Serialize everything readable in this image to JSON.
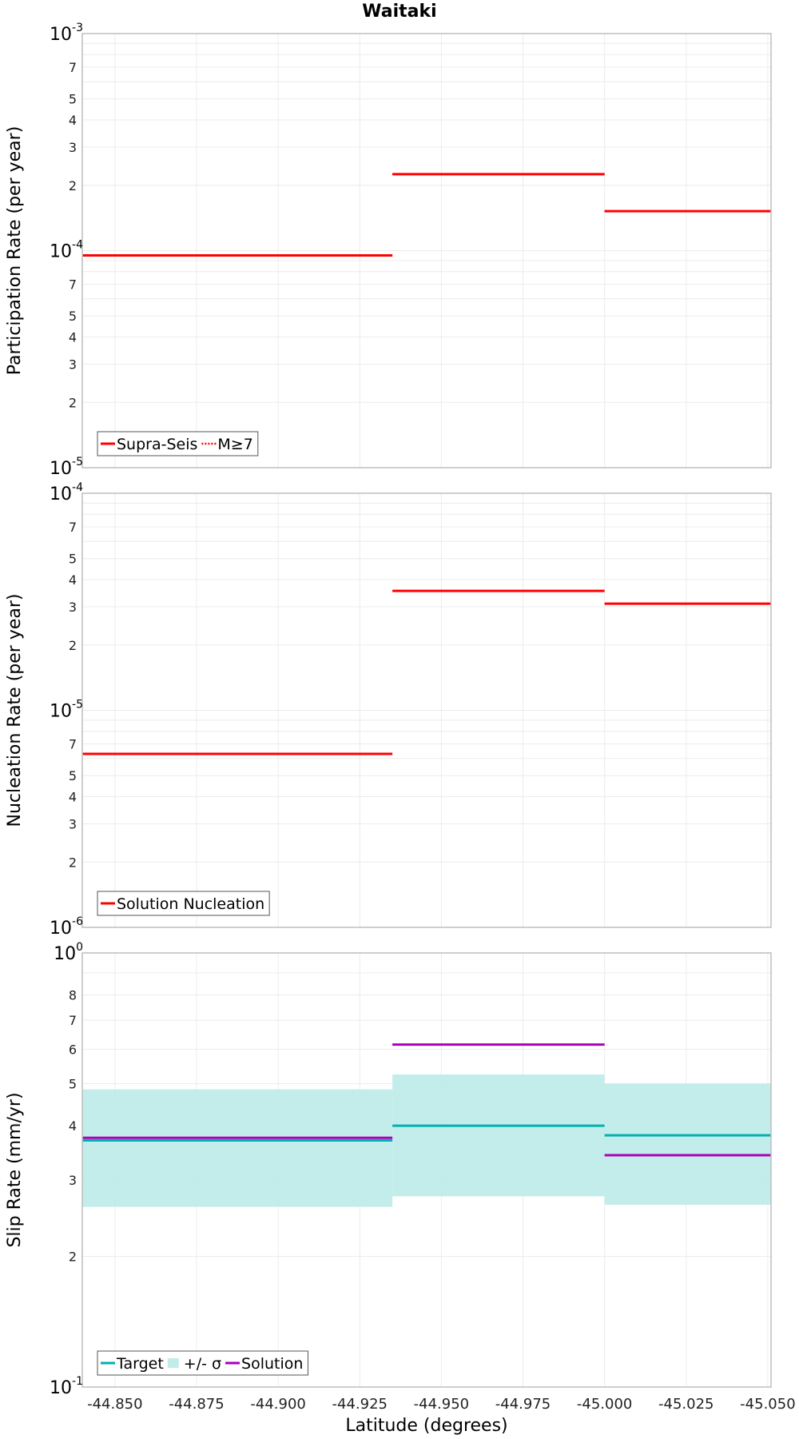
{
  "title": "Waitaki",
  "colors": {
    "red": "#ff0000",
    "cyan": "#00b0b0",
    "band": "#c0ecea",
    "purple": "#aa00bb",
    "grid": "#ececec",
    "frame": "#bdbdbd"
  },
  "x_axis": {
    "label": "Latitude (degrees)",
    "xlim": [
      -44.84,
      -45.051
    ],
    "ticks": [
      -44.85,
      -44.875,
      -44.9,
      -44.925,
      -44.95,
      -44.975,
      -45.0,
      -45.025,
      -45.05
    ],
    "tick_labels": [
      "-44.850",
      "-44.875",
      "-44.900",
      "-44.925",
      "-44.950",
      "-44.975",
      "-45.000",
      "-45.025",
      "-45.050"
    ]
  },
  "chart_data": [
    {
      "type": "line",
      "step": true,
      "ylabel": "Participation Rate (per year)",
      "yscale": "log",
      "ylim": [
        1e-05,
        0.001
      ],
      "decade_labels": [
        {
          "value": 0.001,
          "base": "10",
          "exp": "-3"
        },
        {
          "value": 0.0001,
          "base": "10",
          "exp": "-4"
        },
        {
          "value": 1e-05,
          "base": "10",
          "exp": "-5"
        }
      ],
      "minor_tick_labels": [
        "2",
        "3",
        "4",
        "5",
        "7"
      ],
      "legend": {
        "placement": "bottom-left",
        "entries": [
          {
            "label": "Supra-Seis",
            "style": "solid"
          },
          {
            "label": "M≥7",
            "style": "dotted"
          }
        ]
      },
      "segments": [
        {
          "x0": -44.84,
          "x1": -44.935,
          "supra_seis": 9.5e-05,
          "m_ge_7": 9.5e-05
        },
        {
          "x0": -44.935,
          "x1": -45.0,
          "supra_seis": 0.000225,
          "m_ge_7": 0.000225
        },
        {
          "x0": -45.0,
          "x1": -45.051,
          "supra_seis": 0.000152,
          "m_ge_7": 0.000152
        }
      ]
    },
    {
      "type": "line",
      "step": true,
      "ylabel": "Nucleation Rate (per year)",
      "yscale": "log",
      "ylim": [
        1e-06,
        0.0001
      ],
      "decade_labels": [
        {
          "value": 0.0001,
          "base": "10",
          "exp": "-4"
        },
        {
          "value": 1e-05,
          "base": "10",
          "exp": "-5"
        },
        {
          "value": 1e-06,
          "base": "10",
          "exp": "-6"
        }
      ],
      "minor_tick_labels": [
        "2",
        "3",
        "4",
        "5",
        "7"
      ],
      "legend": {
        "placement": "bottom-left",
        "entries": [
          {
            "label": "Solution Nucleation",
            "style": "solid"
          }
        ]
      },
      "segments": [
        {
          "x0": -44.84,
          "x1": -44.935,
          "solution_nucleation": 6.3e-06
        },
        {
          "x0": -44.935,
          "x1": -45.0,
          "solution_nucleation": 3.55e-05
        },
        {
          "x0": -45.0,
          "x1": -45.051,
          "solution_nucleation": 3.1e-05
        }
      ]
    },
    {
      "type": "line",
      "step": true,
      "ylabel": "Slip Rate (mm/yr)",
      "yscale": "log",
      "ylim": [
        0.1,
        1.0
      ],
      "decade_labels": [
        {
          "value": 1.0,
          "base": "10",
          "exp": "0"
        },
        {
          "value": 0.1,
          "base": "10",
          "exp": "-1"
        }
      ],
      "minor_tick_labels": [
        "2",
        "3",
        "4",
        "5",
        "6",
        "7",
        "8"
      ],
      "legend": {
        "placement": "bottom-left",
        "entries": [
          {
            "label": "Target",
            "style": "solid"
          },
          {
            "label": "+/- σ",
            "style": "band"
          },
          {
            "label": "Solution",
            "style": "solid"
          }
        ]
      },
      "segments": [
        {
          "x0": -44.84,
          "x1": -44.935,
          "target": 0.37,
          "band_low": 0.26,
          "band_high": 0.485,
          "solution": 0.375
        },
        {
          "x0": -44.935,
          "x1": -45.0,
          "target": 0.4,
          "band_low": 0.275,
          "band_high": 0.525,
          "solution": 0.615
        },
        {
          "x0": -45.0,
          "x1": -45.051,
          "target": 0.38,
          "band_low": 0.263,
          "band_high": 0.5,
          "solution": 0.342
        }
      ]
    }
  ]
}
